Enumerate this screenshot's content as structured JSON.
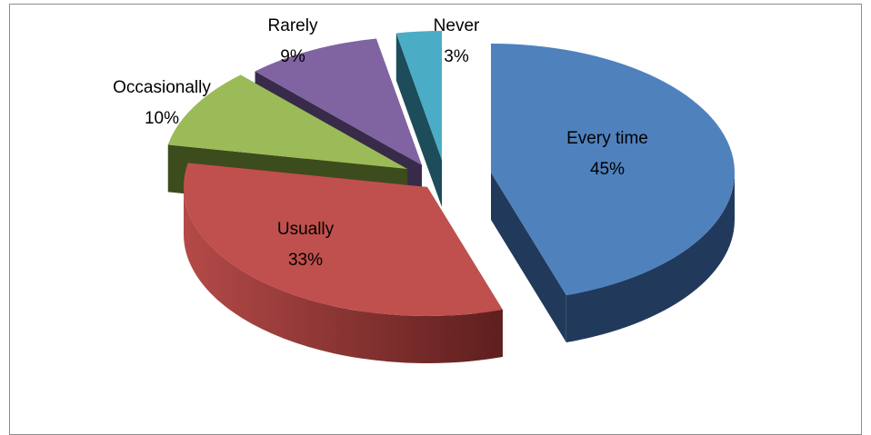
{
  "chart_data": {
    "type": "pie",
    "style": "3d-exploded",
    "categories": [
      "Every time",
      "Usually",
      "Occasionally",
      "Rarely",
      "Never"
    ],
    "values": [
      45,
      33,
      10,
      9,
      3
    ],
    "labels": [
      {
        "name": "Every time",
        "pct": "45%"
      },
      {
        "name": "Usually",
        "pct": "33%"
      },
      {
        "name": "Occasionally",
        "pct": "10%"
      },
      {
        "name": "Rarely",
        "pct": "9%"
      },
      {
        "name": "Never",
        "pct": "3%"
      }
    ],
    "colors": [
      "#4f81bd",
      "#c0504d",
      "#9bbb59",
      "#8064a2",
      "#4bacc6"
    ],
    "side_colors": [
      "#213a5c",
      "#5e1f1e",
      "#3d4c1c",
      "#382b4a",
      "#1d4c5a"
    ],
    "title": "",
    "legend": "none"
  }
}
